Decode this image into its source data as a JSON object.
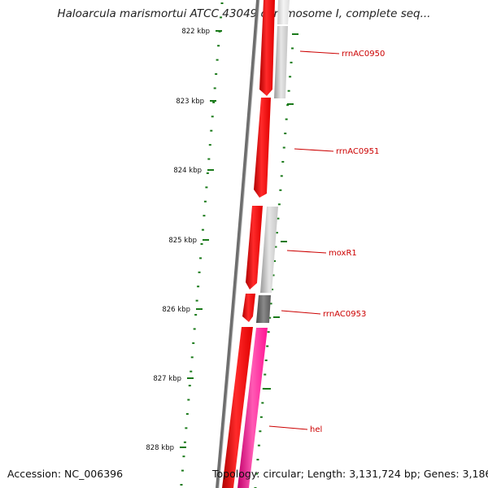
{
  "map": {
    "title": "Haloarcula marismortui ATCC 43049 chromosome I, complete seq...",
    "accession_text": "Accession: NC_006396",
    "stats_text": "Topology: circular; Length: 3,131,724 bp; Genes: 3,186",
    "ticks": [
      {
        "label": "822 kbp"
      },
      {
        "label": "823 kbp"
      },
      {
        "label": "824 kbp"
      },
      {
        "label": "825 kbp"
      },
      {
        "label": "826 kbp"
      },
      {
        "label": "827 kbp"
      },
      {
        "label": "828 kbp"
      }
    ],
    "gene_labels": [
      {
        "name": "rrnAC0950"
      },
      {
        "name": "rrnAC0951"
      },
      {
        "name": "moxR1"
      },
      {
        "name": "rrnAC0953"
      },
      {
        "name": "hel"
      }
    ],
    "colors": {
      "cds": "#ff0000",
      "gene_label": "#cc0000",
      "backbone": "#777777",
      "tick": "#1a7a1a",
      "light_gray_feature": "#c8c8c8",
      "dark_gray_feature": "#666666",
      "magenta_feature": "#ff1493"
    }
  }
}
